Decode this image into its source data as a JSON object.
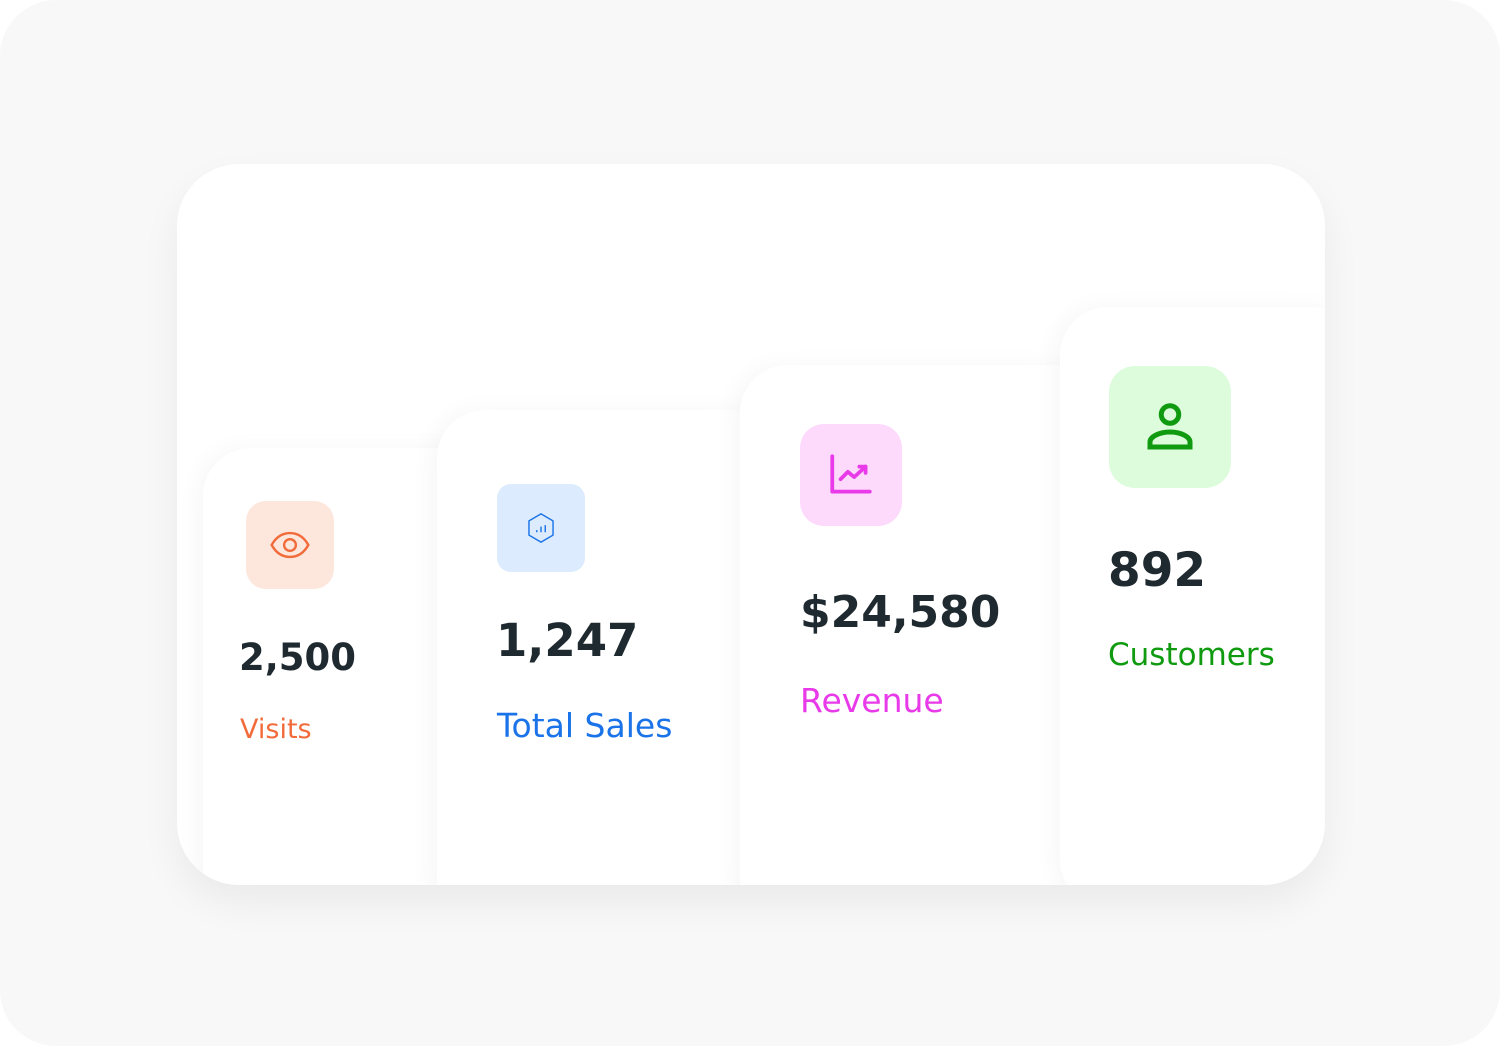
{
  "stats": [
    {
      "value": "2,500",
      "label": "Visits",
      "icon": "eye-icon",
      "color": "#f26b3a",
      "bg": "#fde6db"
    },
    {
      "value": "1,247",
      "label": "Total Sales",
      "icon": "hexagon-chart-icon",
      "color": "#1a73e8",
      "bg": "#dcebfd"
    },
    {
      "value": "$24,580",
      "label": "Revenue",
      "icon": "line-chart-icon",
      "color": "#e83ae8",
      "bg": "#fdd9fb"
    },
    {
      "value": "892",
      "label": "Customers",
      "icon": "user-icon",
      "color": "#0f9a0f",
      "bg": "#dcfcdc"
    }
  ]
}
